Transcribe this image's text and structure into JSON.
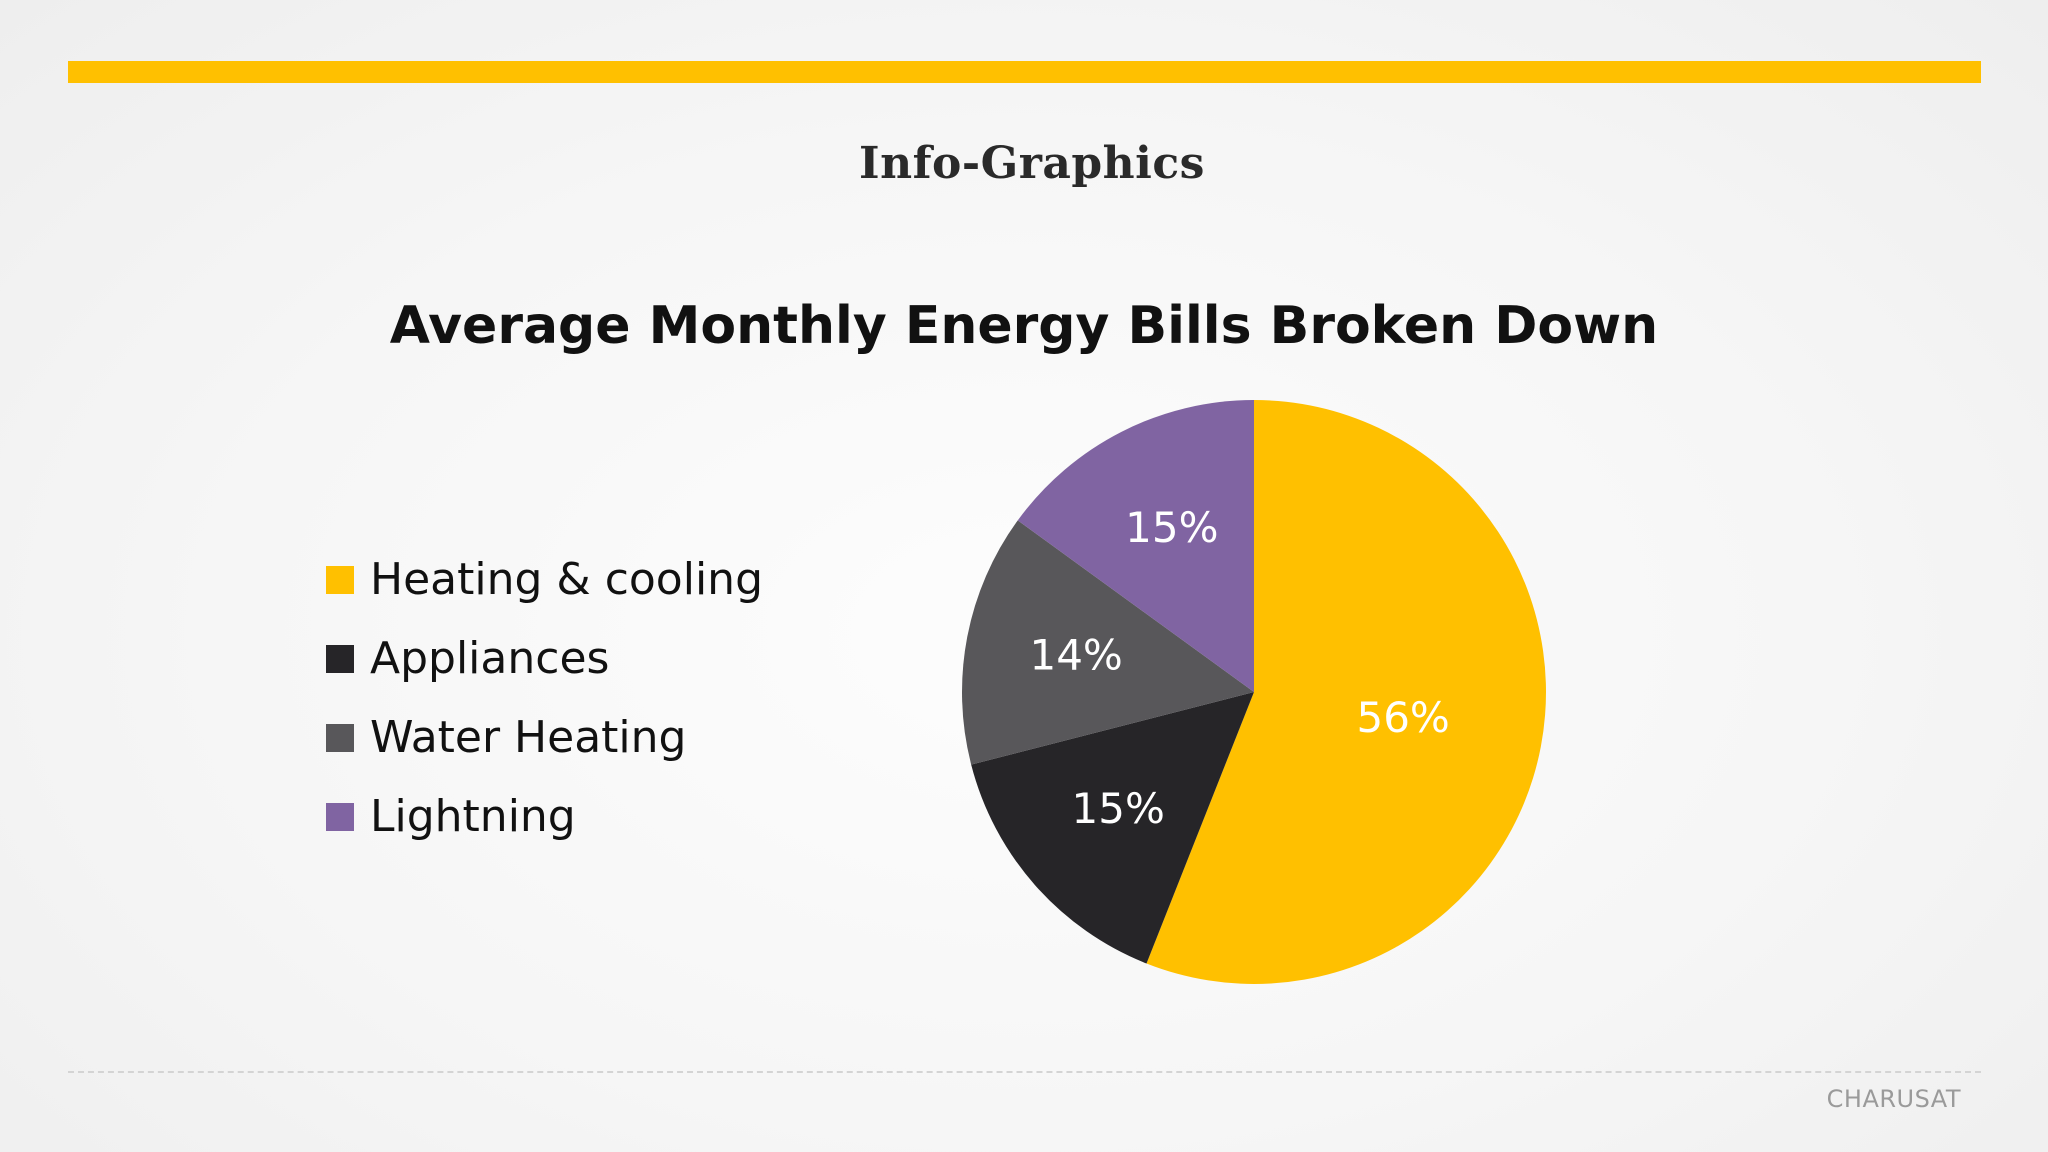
{
  "slide": {
    "heading": "Info-Graphics",
    "footer_brand": "CHARUSAT",
    "accent_color": "#FFC000"
  },
  "chart_data": {
    "type": "pie",
    "title": "Average Monthly Energy Bills Broken Down",
    "categories": [
      "Heating & cooling",
      "Appliances",
      "Water Heating",
      "Lightning"
    ],
    "values": [
      56,
      15,
      14,
      15
    ],
    "labels": [
      "56%",
      "15%",
      "14%",
      "15%"
    ],
    "colors": [
      "#FFC000",
      "#262528",
      "#58575A",
      "#8064A2"
    ],
    "legend": "left",
    "start_angle": "12 o'clock",
    "direction": "clockwise"
  }
}
